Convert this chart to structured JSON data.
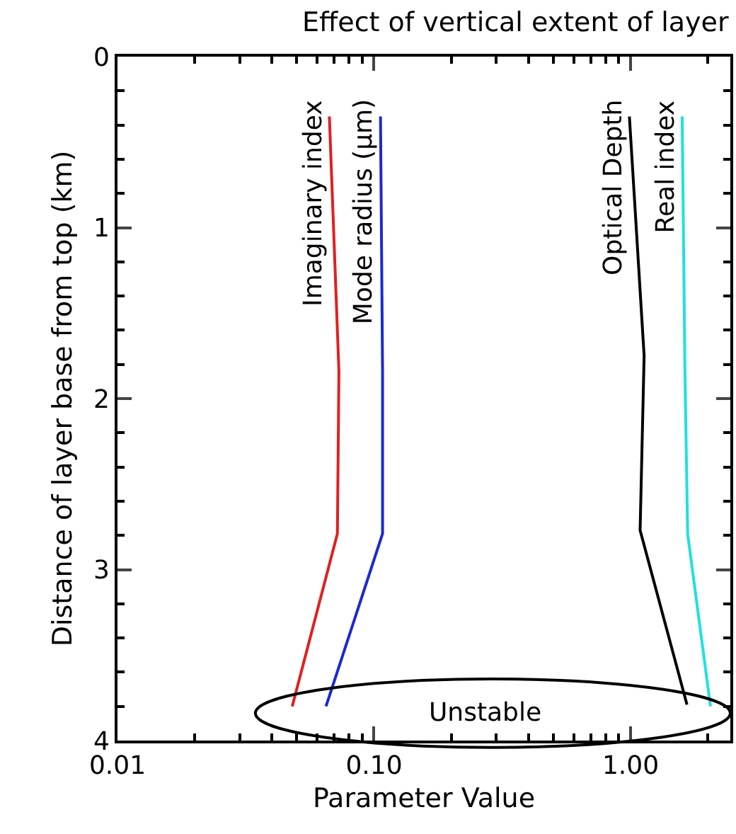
{
  "chart_data": {
    "type": "line",
    "title": "Effect of vertical extent of layer",
    "xlabel": "Parameter Value",
    "ylabel": "Distance of layer base from top (km)",
    "log": "x",
    "xlim": [
      0.01,
      2.45
    ],
    "xticks": [
      {
        "value": 0.01,
        "label": "0.01"
      },
      {
        "value": 0.1,
        "label": "0.10"
      },
      {
        "value": 1,
        "label": "1.00"
      }
    ],
    "ylim": [
      4,
      0
    ],
    "yticks": [
      0,
      1,
      2,
      3,
      4
    ],
    "grid": false,
    "legend": false,
    "marker": "none",
    "line_style": "solid",
    "series": [
      {
        "name": "Imaginary index",
        "color": "#e02020",
        "x": [
          0.067,
          0.073,
          0.072,
          0.048
        ],
        "values": [
          0.35,
          1.84,
          2.79,
          3.8
        ]
      },
      {
        "name": "Mode radius (µm)",
        "color": "#1a2ad0",
        "x": [
          0.106,
          0.108,
          0.108,
          0.065
        ],
        "values": [
          0.35,
          1.84,
          2.79,
          3.8
        ]
      },
      {
        "name": "Optical Depth",
        "color": "#000000",
        "x": [
          0.99,
          1.13,
          1.09,
          1.66
        ],
        "values": [
          0.35,
          1.75,
          2.77,
          3.79
        ]
      },
      {
        "name": "Real index",
        "color": "#20e0e0",
        "x": [
          1.59,
          1.63,
          1.67,
          2.05
        ],
        "values": [
          0.35,
          1.84,
          2.79,
          3.8
        ]
      }
    ],
    "annotations": [
      "Unstable"
    ]
  }
}
